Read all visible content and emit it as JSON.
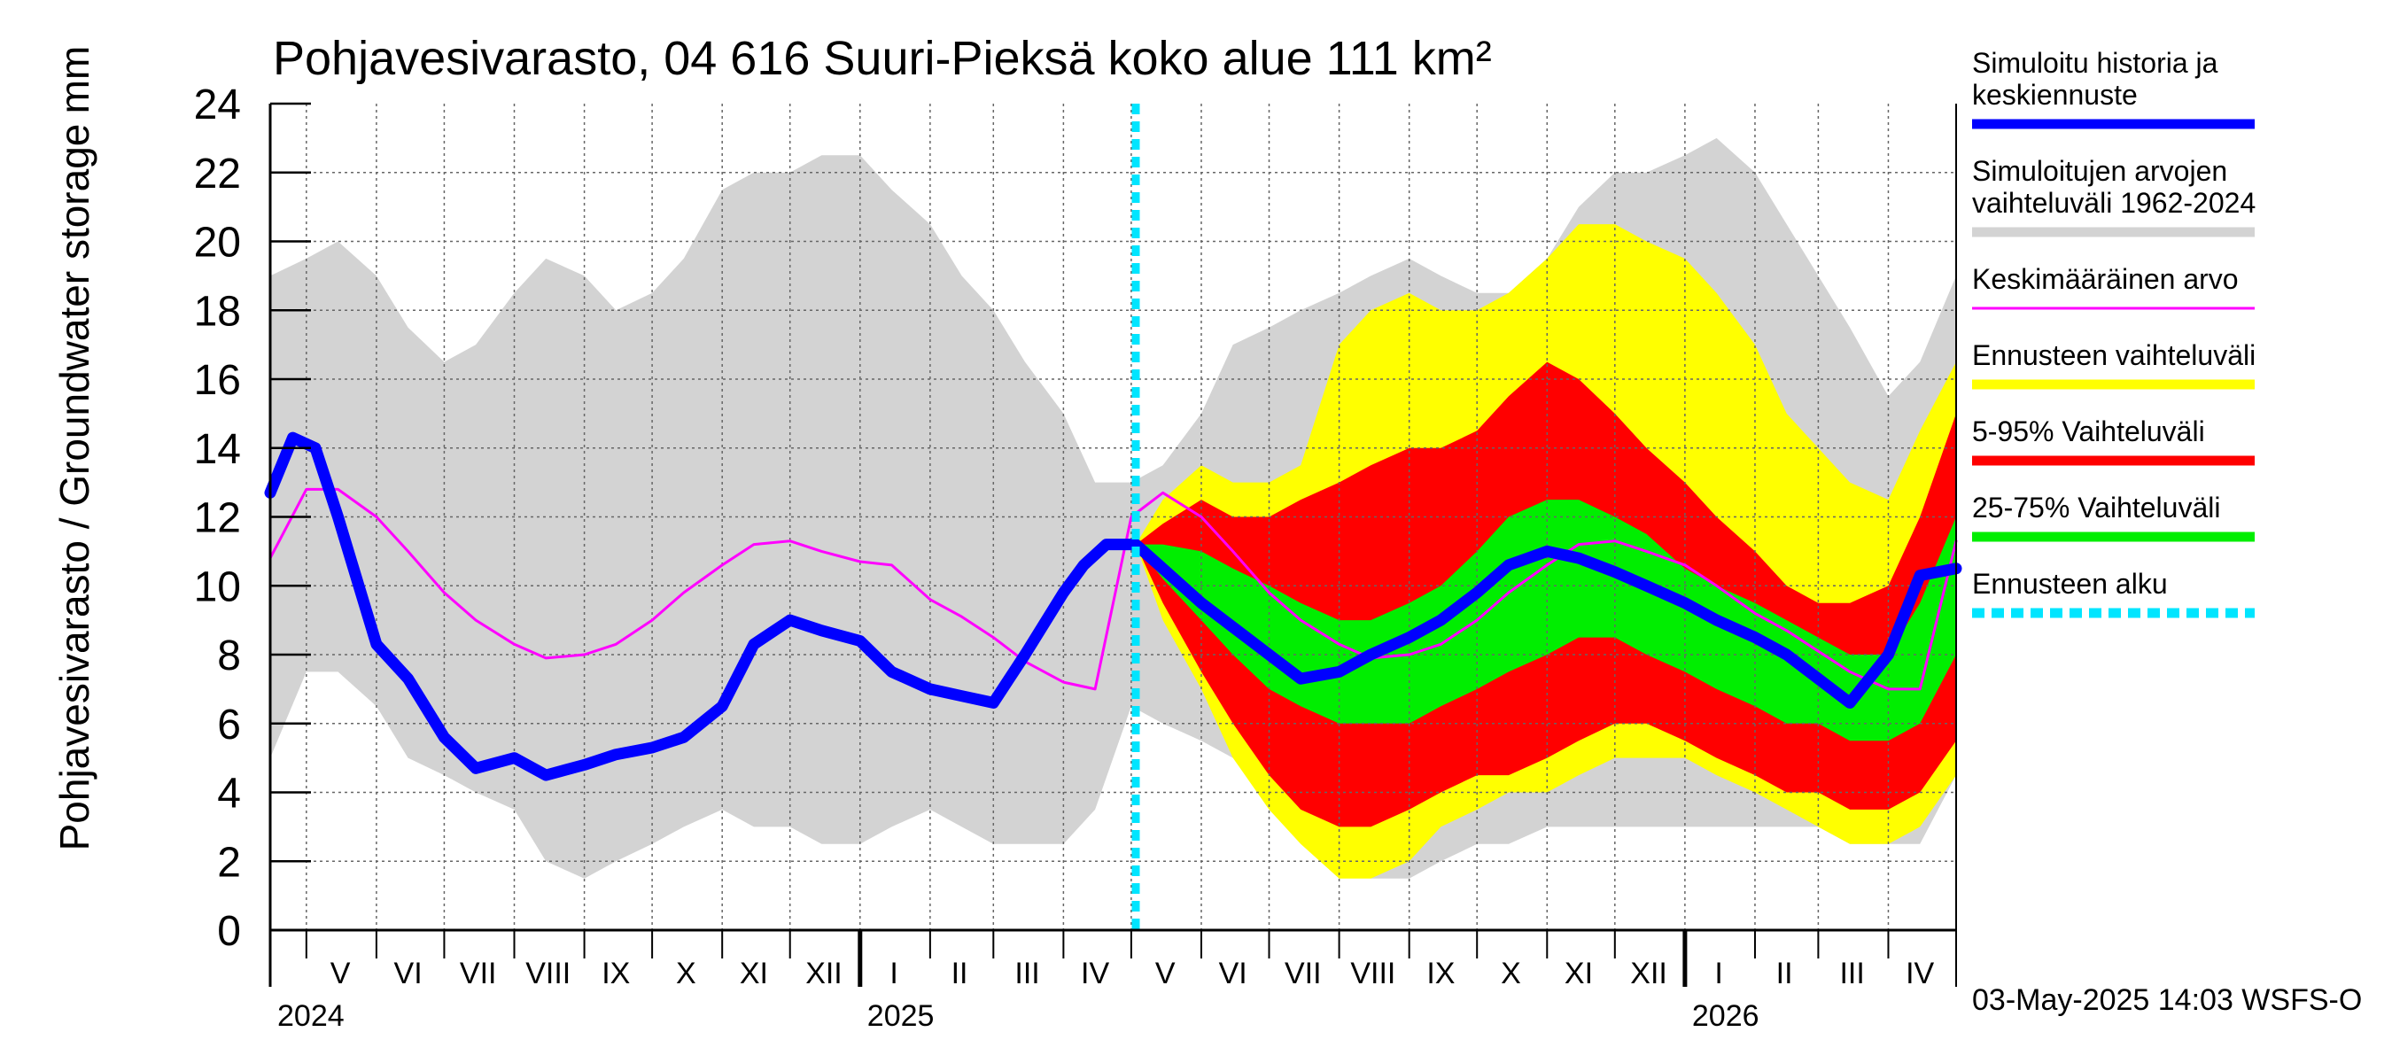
{
  "chart_data": {
    "type": "area",
    "title": "Pohjavesivarasto, 04 616 Suuri-Pieksä koko alue 111 km²",
    "ylabel": "Pohjavesivarasto / Groundwater storage",
    "yunit": "mm",
    "ylim": [
      0,
      24
    ],
    "yticks": [
      0,
      2,
      4,
      6,
      8,
      10,
      12,
      14,
      16,
      18,
      20,
      22,
      24
    ],
    "xlim": [
      "2024-04-15",
      "2026-05-01"
    ],
    "forecast_start": "2025-05-03",
    "grid": true,
    "months": [
      {
        "label": "V",
        "mid": "2024-05-16"
      },
      {
        "label": "VI",
        "mid": "2024-06-15"
      },
      {
        "label": "VII",
        "mid": "2024-07-16"
      },
      {
        "label": "VIII",
        "mid": "2024-08-16"
      },
      {
        "label": "IX",
        "mid": "2024-09-15"
      },
      {
        "label": "X",
        "mid": "2024-10-16"
      },
      {
        "label": "XI",
        "mid": "2024-11-15"
      },
      {
        "label": "XII",
        "mid": "2024-12-16"
      },
      {
        "label": "I",
        "mid": "2025-01-16"
      },
      {
        "label": "II",
        "mid": "2025-02-14"
      },
      {
        "label": "III",
        "mid": "2025-03-16"
      },
      {
        "label": "IV",
        "mid": "2025-04-15"
      },
      {
        "label": "V",
        "mid": "2025-05-16"
      },
      {
        "label": "VI",
        "mid": "2025-06-15"
      },
      {
        "label": "VII",
        "mid": "2025-07-16"
      },
      {
        "label": "VIII",
        "mid": "2025-08-16"
      },
      {
        "label": "IX",
        "mid": "2025-09-15"
      },
      {
        "label": "X",
        "mid": "2025-10-16"
      },
      {
        "label": "XI",
        "mid": "2025-11-15"
      },
      {
        "label": "XII",
        "mid": "2025-12-16"
      },
      {
        "label": "I",
        "mid": "2026-01-16"
      },
      {
        "label": "II",
        "mid": "2026-02-14"
      },
      {
        "label": "III",
        "mid": "2026-03-16"
      },
      {
        "label": "IV",
        "mid": "2026-04-15"
      }
    ],
    "month_starts": [
      "2024-05-01",
      "2024-06-01",
      "2024-07-01",
      "2024-08-01",
      "2024-09-01",
      "2024-10-01",
      "2024-11-01",
      "2024-12-01",
      "2025-01-01",
      "2025-02-01",
      "2025-03-01",
      "2025-04-01",
      "2025-05-01",
      "2025-06-01",
      "2025-07-01",
      "2025-08-01",
      "2025-09-01",
      "2025-10-01",
      "2025-11-01",
      "2025-12-01",
      "2026-01-01",
      "2026-02-01",
      "2026-03-01",
      "2026-04-01",
      "2026-05-01"
    ],
    "years": [
      {
        "label": "2024",
        "start": "2024-04-15"
      },
      {
        "label": "2025",
        "start": "2025-01-01"
      },
      {
        "label": "2026",
        "start": "2026-01-01"
      }
    ],
    "series": [
      {
        "name": "Simuloitujen arvojen vaihteluväli 1962-2024",
        "kind": "band",
        "color": "#d3d3d3",
        "x": [
          "2024-04-15",
          "2024-05-01",
          "2024-05-15",
          "2024-06-01",
          "2024-06-15",
          "2024-07-01",
          "2024-07-15",
          "2024-08-01",
          "2024-08-15",
          "2024-09-01",
          "2024-09-15",
          "2024-10-01",
          "2024-10-15",
          "2024-11-01",
          "2024-11-15",
          "2024-12-01",
          "2024-12-15",
          "2025-01-01",
          "2025-01-15",
          "2025-02-01",
          "2025-02-15",
          "2025-03-01",
          "2025-03-15",
          "2025-04-01",
          "2025-04-15",
          "2025-05-01",
          "2025-05-15",
          "2025-06-01",
          "2025-06-15",
          "2025-07-01",
          "2025-07-15",
          "2025-08-01",
          "2025-08-15",
          "2025-09-01",
          "2025-09-15",
          "2025-10-01",
          "2025-10-15",
          "2025-11-01",
          "2025-11-15",
          "2025-12-01",
          "2025-12-15",
          "2026-01-01",
          "2026-01-15",
          "2026-02-01",
          "2026-02-15",
          "2026-03-01",
          "2026-03-15",
          "2026-04-01",
          "2026-04-15",
          "2026-05-01"
        ],
        "upper": [
          19.0,
          19.5,
          20.0,
          19.0,
          17.5,
          16.5,
          17.0,
          18.5,
          19.5,
          19.0,
          18.0,
          18.5,
          19.5,
          21.5,
          22.0,
          22.0,
          22.5,
          22.5,
          21.5,
          20.5,
          19.0,
          18.0,
          16.5,
          15.0,
          13.0,
          13.0,
          13.5,
          15.0,
          17.0,
          17.5,
          18.0,
          18.5,
          19.0,
          19.5,
          19.0,
          18.5,
          18.5,
          19.5,
          21.0,
          22.0,
          22.0,
          22.5,
          23.0,
          22.0,
          20.5,
          19.0,
          17.5,
          15.5,
          16.5,
          19.0
        ],
        "lower": [
          5.0,
          7.5,
          7.5,
          6.5,
          5.0,
          4.5,
          4.0,
          3.5,
          2.0,
          1.5,
          2.0,
          2.5,
          3.0,
          3.5,
          3.0,
          3.0,
          2.5,
          2.5,
          3.0,
          3.5,
          3.0,
          2.5,
          2.5,
          2.5,
          3.5,
          6.5,
          6.0,
          5.5,
          5.0,
          4.0,
          3.0,
          2.0,
          1.5,
          1.5,
          2.0,
          2.5,
          2.5,
          3.0,
          3.0,
          3.0,
          3.0,
          3.0,
          3.0,
          3.0,
          3.0,
          3.0,
          2.5,
          2.5,
          2.5,
          4.5
        ]
      },
      {
        "name": "Ennusteen vaihteluväli",
        "kind": "band",
        "color": "#ffff00",
        "x": [
          "2025-05-03",
          "2025-05-15",
          "2025-06-01",
          "2025-06-15",
          "2025-07-01",
          "2025-07-15",
          "2025-08-01",
          "2025-08-15",
          "2025-09-01",
          "2025-09-15",
          "2025-10-01",
          "2025-10-15",
          "2025-11-01",
          "2025-11-15",
          "2025-12-01",
          "2025-12-15",
          "2026-01-01",
          "2026-01-15",
          "2026-02-01",
          "2026-02-15",
          "2026-03-01",
          "2026-03-15",
          "2026-04-01",
          "2026-04-15",
          "2026-05-01"
        ],
        "upper": [
          11.2,
          12.5,
          13.5,
          13.0,
          13.0,
          13.5,
          17.0,
          18.0,
          18.5,
          18.0,
          18.0,
          18.5,
          19.5,
          20.5,
          20.5,
          20.0,
          19.5,
          18.5,
          17.0,
          15.0,
          14.0,
          13.0,
          12.5,
          14.5,
          16.5
        ],
        "lower": [
          11.2,
          9.0,
          7.0,
          5.0,
          3.5,
          2.5,
          1.5,
          1.5,
          2.0,
          3.0,
          3.5,
          4.0,
          4.0,
          4.5,
          5.0,
          5.0,
          5.0,
          4.5,
          4.0,
          3.5,
          3.0,
          2.5,
          2.5,
          3.0,
          4.5
        ]
      },
      {
        "name": "5-95% Vaihteluväli",
        "kind": "band",
        "color": "#ff0000",
        "x": [
          "2025-05-03",
          "2025-05-15",
          "2025-06-01",
          "2025-06-15",
          "2025-07-01",
          "2025-07-15",
          "2025-08-01",
          "2025-08-15",
          "2025-09-01",
          "2025-09-15",
          "2025-10-01",
          "2025-10-15",
          "2025-11-01",
          "2025-11-15",
          "2025-12-01",
          "2025-12-15",
          "2026-01-01",
          "2026-01-15",
          "2026-02-01",
          "2026-02-15",
          "2026-03-01",
          "2026-03-15",
          "2026-04-01",
          "2026-04-15",
          "2026-05-01"
        ],
        "upper": [
          11.2,
          11.8,
          12.5,
          12.0,
          12.0,
          12.5,
          13.0,
          13.5,
          14.0,
          14.0,
          14.5,
          15.5,
          16.5,
          16.0,
          15.0,
          14.0,
          13.0,
          12.0,
          11.0,
          10.0,
          9.5,
          9.5,
          10.0,
          12.0,
          15.0
        ],
        "lower": [
          11.2,
          9.5,
          7.5,
          6.0,
          4.5,
          3.5,
          3.0,
          3.0,
          3.5,
          4.0,
          4.5,
          4.5,
          5.0,
          5.5,
          6.0,
          6.0,
          5.5,
          5.0,
          4.5,
          4.0,
          4.0,
          3.5,
          3.5,
          4.0,
          5.5
        ]
      },
      {
        "name": "25-75% Vaihteluväli",
        "kind": "band",
        "color": "#00ee00",
        "x": [
          "2025-05-03",
          "2025-05-15",
          "2025-06-01",
          "2025-06-15",
          "2025-07-01",
          "2025-07-15",
          "2025-08-01",
          "2025-08-15",
          "2025-09-01",
          "2025-09-15",
          "2025-10-01",
          "2025-10-15",
          "2025-11-01",
          "2025-11-15",
          "2025-12-01",
          "2025-12-15",
          "2026-01-01",
          "2026-01-15",
          "2026-02-01",
          "2026-02-15",
          "2026-03-01",
          "2026-03-15",
          "2026-04-01",
          "2026-04-15",
          "2026-05-01"
        ],
        "upper": [
          11.2,
          11.2,
          11.0,
          10.5,
          10.0,
          9.5,
          9.0,
          9.0,
          9.5,
          10.0,
          11.0,
          12.0,
          12.5,
          12.5,
          12.0,
          11.5,
          10.5,
          10.0,
          9.5,
          9.0,
          8.5,
          8.0,
          8.0,
          9.5,
          12.0
        ],
        "lower": [
          11.2,
          10.2,
          9.0,
          8.0,
          7.0,
          6.5,
          6.0,
          6.0,
          6.0,
          6.5,
          7.0,
          7.5,
          8.0,
          8.5,
          8.5,
          8.0,
          7.5,
          7.0,
          6.5,
          6.0,
          6.0,
          5.5,
          5.5,
          6.0,
          8.0
        ]
      },
      {
        "name": "Keskimääräinen arvo",
        "kind": "line",
        "color": "#ff00ff",
        "x": [
          "2024-04-15",
          "2024-05-01",
          "2024-05-15",
          "2024-06-01",
          "2024-06-15",
          "2024-07-01",
          "2024-07-15",
          "2024-08-01",
          "2024-08-15",
          "2024-09-01",
          "2024-09-15",
          "2024-10-01",
          "2024-10-15",
          "2024-11-01",
          "2024-11-15",
          "2024-12-01",
          "2024-12-15",
          "2025-01-01",
          "2025-01-15",
          "2025-02-01",
          "2025-02-15",
          "2025-03-01",
          "2025-03-15",
          "2025-04-01",
          "2025-04-15",
          "2025-05-01",
          "2025-05-15",
          "2025-06-01",
          "2025-06-15",
          "2025-07-01",
          "2025-07-15",
          "2025-08-01",
          "2025-08-15",
          "2025-09-01",
          "2025-09-15",
          "2025-10-01",
          "2025-10-15",
          "2025-11-01",
          "2025-11-15",
          "2025-12-01",
          "2025-12-15",
          "2026-01-01",
          "2026-01-15",
          "2026-02-01",
          "2026-02-15",
          "2026-03-01",
          "2026-03-15",
          "2026-04-01",
          "2026-04-15",
          "2026-05-01"
        ],
        "values": [
          10.8,
          12.8,
          12.8,
          12.0,
          11.0,
          9.8,
          9.0,
          8.3,
          7.9,
          8.0,
          8.3,
          9.0,
          9.8,
          10.6,
          11.2,
          11.3,
          11.0,
          10.7,
          10.6,
          9.6,
          9.1,
          8.5,
          7.8,
          7.2,
          7.0,
          12.0,
          12.7,
          12.0,
          11.0,
          9.8,
          9.0,
          8.3,
          7.9,
          8.0,
          8.3,
          9.0,
          9.8,
          10.6,
          11.2,
          11.3,
          11.0,
          10.6,
          10.0,
          9.2,
          8.7,
          8.1,
          7.5,
          7.0,
          7.0,
          11.3
        ]
      },
      {
        "name": "Simuloitu historia ja keskiennuste",
        "kind": "line",
        "color": "#0000ff",
        "x": [
          "2024-04-15",
          "2024-04-25",
          "2024-05-05",
          "2024-05-15",
          "2024-06-01",
          "2024-06-15",
          "2024-07-01",
          "2024-07-15",
          "2024-08-01",
          "2024-08-15",
          "2024-09-01",
          "2024-09-15",
          "2024-10-01",
          "2024-10-15",
          "2024-11-01",
          "2024-11-15",
          "2024-12-01",
          "2024-12-15",
          "2025-01-01",
          "2025-01-15",
          "2025-02-01",
          "2025-02-15",
          "2025-03-01",
          "2025-03-15",
          "2025-04-01",
          "2025-04-10",
          "2025-04-20",
          "2025-05-03",
          "2025-05-15",
          "2025-06-01",
          "2025-06-15",
          "2025-07-01",
          "2025-07-15",
          "2025-08-01",
          "2025-08-15",
          "2025-09-01",
          "2025-09-15",
          "2025-10-01",
          "2025-10-15",
          "2025-11-01",
          "2025-11-15",
          "2025-12-01",
          "2025-12-15",
          "2026-01-01",
          "2026-01-15",
          "2026-02-01",
          "2026-02-15",
          "2026-03-01",
          "2026-03-15",
          "2026-04-01",
          "2026-04-15",
          "2026-05-01"
        ],
        "values": [
          12.7,
          14.3,
          14.0,
          12.0,
          8.3,
          7.3,
          5.6,
          4.7,
          5.0,
          4.5,
          4.8,
          5.1,
          5.3,
          5.6,
          6.5,
          8.3,
          9.0,
          8.7,
          8.4,
          7.5,
          7.0,
          6.8,
          6.6,
          8.0,
          9.8,
          10.6,
          11.2,
          11.2,
          10.5,
          9.5,
          8.8,
          8.0,
          7.3,
          7.5,
          8.0,
          8.5,
          9.0,
          9.8,
          10.6,
          11.0,
          10.8,
          10.4,
          10.0,
          9.5,
          9.0,
          8.5,
          8.0,
          7.3,
          6.6,
          8.0,
          10.3,
          10.5
        ]
      },
      {
        "name": "Ennusteen alku",
        "kind": "vline",
        "color": "#00e5ff",
        "x": "2025-05-03"
      }
    ]
  },
  "legend": [
    {
      "label": "Simuloitu historia ja keskiennuste",
      "color": "#0000ff",
      "kind": "thick"
    },
    {
      "label": "Simuloitujen arvojen vaihteluväli 1962-2024",
      "color": "#d3d3d3",
      "kind": "thick"
    },
    {
      "label": "Keskimääräinen arvo",
      "color": "#ff00ff",
      "kind": "thin"
    },
    {
      "label": "Ennusteen vaihteluväli",
      "color": "#ffff00",
      "kind": "thick"
    },
    {
      "label": "5-95% Vaihteluväli",
      "color": "#ff0000",
      "kind": "thick"
    },
    {
      "label": "25-75% Vaihteluväli",
      "color": "#00ee00",
      "kind": "thick"
    },
    {
      "label": "Ennusteen alku",
      "color": "#00e5ff",
      "kind": "dashed"
    }
  ],
  "footer": "03-May-2025 14:03 WSFS-O"
}
